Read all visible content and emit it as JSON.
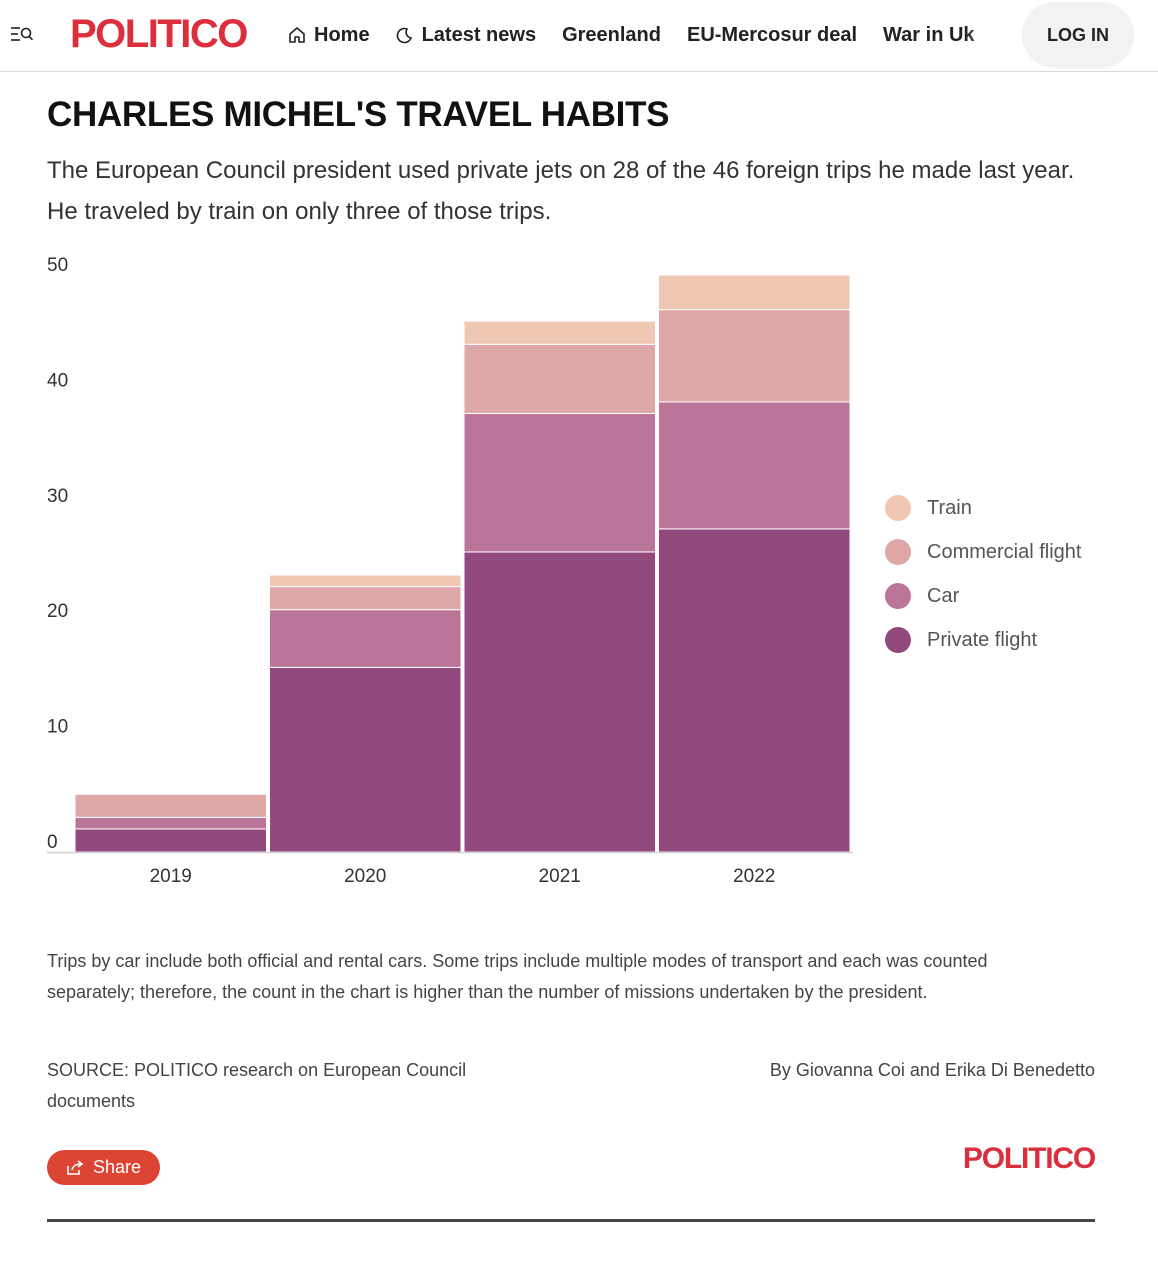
{
  "nav": {
    "logo": "POLITICO",
    "links": [
      "Home",
      "Latest news",
      "Greenland",
      "EU-Mercosur deal",
      "War in Uk"
    ],
    "login": "LOG IN"
  },
  "title": "CHARLES MICHEL'S TRAVEL HABITS",
  "subtitle": "The European Council president used private jets on 28 of the 46 foreign trips he made last year. He traveled by train on only three of those trips.",
  "chart_data": {
    "type": "bar",
    "stacked": true,
    "categories": [
      "2019",
      "2020",
      "2021",
      "2022"
    ],
    "series": [
      {
        "name": "Private flight",
        "color": "#92497e",
        "values": [
          2,
          16,
          26,
          28
        ]
      },
      {
        "name": "Car",
        "color": "#bb7598",
        "values": [
          1,
          5,
          12,
          11
        ]
      },
      {
        "name": "Commercial flight",
        "color": "#dea8a9",
        "values": [
          2,
          2,
          6,
          8
        ]
      },
      {
        "name": "Train",
        "color": "#efc7b3",
        "values": [
          0,
          1,
          2,
          3
        ]
      }
    ],
    "yticks": [
      "0",
      "10",
      "20",
      "30",
      "40",
      "50"
    ],
    "ylim": [
      0,
      50
    ],
    "legend_position": "right",
    "legend_order": [
      "Train",
      "Commercial flight",
      "Car",
      "Private flight"
    ]
  },
  "note": "Trips by car include both official and rental cars. Some trips include multiple modes of transport and each was counted separately; therefore, the count in the chart is higher than the number of missions undertaken by the president.",
  "source": "SOURCE: POLITICO research on European Council documents",
  "byline": "By Giovanna Coi and Erika Di Benedetto",
  "share_label": "Share",
  "footer_logo": "POLITICO"
}
